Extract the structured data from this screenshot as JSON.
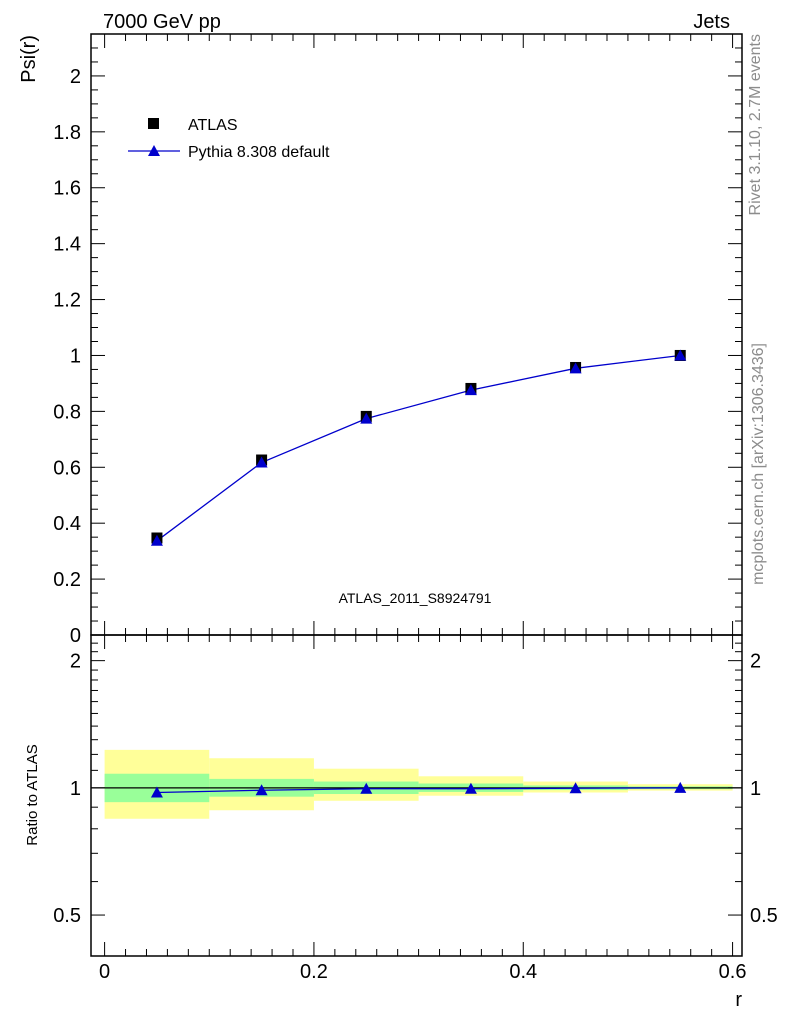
{
  "header": {
    "left": "7000 GeV pp",
    "right": "Jets"
  },
  "side_labels": {
    "rivet": "Rivet 3.1.10,  2.7M events",
    "mcplots": "mcplots.cern.ch [arXiv:1306.3436]"
  },
  "watermark": "ATLAS_2011_S8924791",
  "legend": {
    "data_label": "ATLAS",
    "mc_label": "Pythia 8.308 default"
  },
  "colors": {
    "data": "#000000",
    "mc": "#0000cc",
    "band_inner": "#99ff99",
    "band_outer": "#ffff99"
  },
  "chart_data": [
    {
      "type": "scatter",
      "ylabel": "Psi(r)",
      "xlim": [
        -0.013,
        0.609
      ],
      "ylim": [
        0,
        2.15
      ],
      "ytick_labels": [
        "0",
        "0.2",
        "0.4",
        "0.6",
        "0.8",
        "1",
        "1.2",
        "1.4",
        "1.6",
        "1.8",
        "2"
      ],
      "series": [
        {
          "name": "ATLAS",
          "x": [
            0.05,
            0.15,
            0.25,
            0.35,
            0.45,
            0.55
          ],
          "values": [
            0.347,
            0.626,
            0.782,
            0.882,
            0.957,
            1.0
          ]
        },
        {
          "name": "Pythia 8.308 default",
          "x": [
            0.05,
            0.15,
            0.25,
            0.35,
            0.45,
            0.55
          ],
          "values": [
            0.337,
            0.617,
            0.774,
            0.876,
            0.954,
            1.0
          ]
        }
      ]
    },
    {
      "type": "line",
      "xlabel": "r",
      "ylabel": "Ratio to ATLAS",
      "xlim": [
        -0.013,
        0.609
      ],
      "ylim": [
        0.4,
        2.3
      ],
      "log_y": true,
      "xtick_labels": [
        "0",
        "0.2",
        "0.4",
        "0.6"
      ],
      "ytick_labels": [
        "0.5",
        "1",
        "2"
      ],
      "bands": {
        "x_edges": [
          0.0,
          0.1,
          0.2,
          0.3,
          0.4,
          0.5
        ],
        "inner": [
          [
            0.925,
            1.08
          ],
          [
            0.953,
            1.05
          ],
          [
            0.967,
            1.035
          ],
          [
            0.978,
            1.024
          ],
          [
            0.988,
            1.013
          ],
          [
            0.993,
            1.008
          ]
        ],
        "outer": [
          [
            0.845,
            1.23
          ],
          [
            0.885,
            1.175
          ],
          [
            0.932,
            1.11
          ],
          [
            0.958,
            1.065
          ],
          [
            0.975,
            1.035
          ],
          [
            0.985,
            1.02
          ]
        ]
      },
      "series": [
        {
          "name": "Pythia 8.308 default",
          "x": [
            0.05,
            0.15,
            0.25,
            0.35,
            0.45,
            0.55
          ],
          "values": [
            0.975,
            0.987,
            0.995,
            0.995,
            0.998,
            1.0
          ]
        }
      ]
    }
  ]
}
